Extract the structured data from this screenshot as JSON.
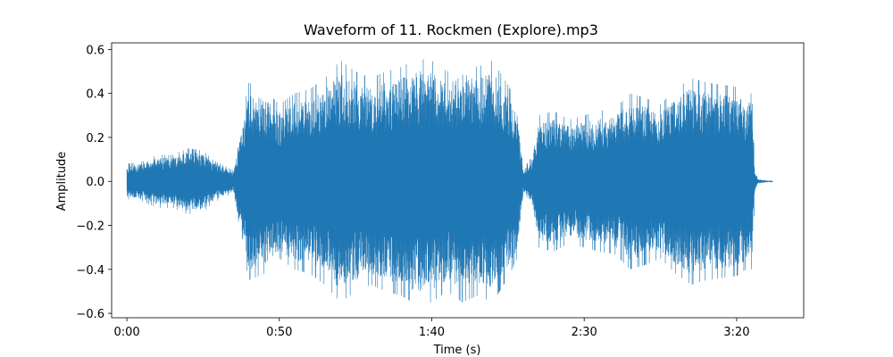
{
  "chart_data": {
    "type": "line",
    "title": "Waveform of 11. Rockmen (Explore).mp3",
    "xlabel": "Time (s)",
    "ylabel": "Amplitude",
    "xlim": [
      -5,
      222
    ],
    "ylim": [
      -0.62,
      0.63
    ],
    "x_ticks": [
      {
        "value": 0,
        "label": "0:00"
      },
      {
        "value": 50,
        "label": "0:50"
      },
      {
        "value": 100,
        "label": "1:40"
      },
      {
        "value": 150,
        "label": "2:30"
      },
      {
        "value": 200,
        "label": "3:20"
      }
    ],
    "y_ticks": [
      {
        "value": -0.6,
        "label": "−0.6"
      },
      {
        "value": -0.4,
        "label": "−0.4"
      },
      {
        "value": -0.2,
        "label": "−0.2"
      },
      {
        "value": 0.0,
        "label": "0.0"
      },
      {
        "value": 0.2,
        "label": "0.2"
      },
      {
        "value": 0.4,
        "label": "0.4"
      },
      {
        "value": 0.6,
        "label": "0.6"
      }
    ],
    "grid": false,
    "color": "#1f77b4",
    "duration": 212,
    "envelope": {
      "time": [
        0,
        5,
        10,
        15,
        20,
        25,
        28,
        35,
        38,
        40,
        45,
        50,
        55,
        60,
        65,
        70,
        75,
        80,
        85,
        90,
        95,
        100,
        105,
        110,
        115,
        120,
        125,
        128,
        130,
        133,
        135,
        140,
        145,
        150,
        155,
        160,
        165,
        170,
        175,
        180,
        185,
        190,
        195,
        200,
        203,
        205,
        206,
        207,
        212
      ],
      "amplitude": [
        0.08,
        0.09,
        0.12,
        0.12,
        0.15,
        0.14,
        0.1,
        0.05,
        0.3,
        0.45,
        0.42,
        0.35,
        0.4,
        0.42,
        0.47,
        0.55,
        0.5,
        0.47,
        0.5,
        0.52,
        0.56,
        0.55,
        0.5,
        0.55,
        0.52,
        0.55,
        0.44,
        0.35,
        0.05,
        0.12,
        0.3,
        0.32,
        0.28,
        0.3,
        0.32,
        0.33,
        0.4,
        0.38,
        0.35,
        0.42,
        0.47,
        0.45,
        0.44,
        0.43,
        0.4,
        0.4,
        0.05,
        0.01,
        0.0
      ]
    }
  }
}
